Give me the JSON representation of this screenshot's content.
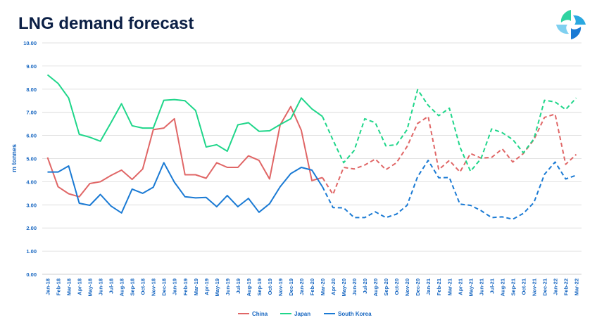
{
  "title": "LNG demand forecast",
  "chart_data": {
    "type": "line",
    "title": "LNG demand forecast",
    "ylabel": "m tonnes",
    "xlabel": "",
    "ylim": [
      0,
      10
    ],
    "yticks": [
      "0.00",
      "1.00",
      "2.00",
      "3.00",
      "4.00",
      "5.00",
      "6.00",
      "7.00",
      "8.00",
      "9.00",
      "10.00"
    ],
    "grid": true,
    "legend_position": "bottom",
    "forecast_start_index": 26,
    "categories": [
      "Jan-18",
      "Feb-18",
      "Mar-18",
      "Apr-18",
      "May-18",
      "Jun-18",
      "Jul-18",
      "Aug-18",
      "Sep-18",
      "Oct-18",
      "Nov-18",
      "Dec-18",
      "Jan-19",
      "Feb-19",
      "Mar-19",
      "Apr-19",
      "May-19",
      "Jun-19",
      "Jul-19",
      "Aug-19",
      "Sep-19",
      "Oct-19",
      "Nov-19",
      "Dec-19",
      "Jan-20",
      "Feb-20",
      "Mar-20",
      "Apr-20",
      "May-20",
      "Jun-20",
      "Jul-20",
      "Aug-20",
      "Sep-20",
      "Oct-20",
      "Nov-20",
      "Dec-20",
      "Jan-21",
      "Feb-21",
      "Mar-21",
      "Apr-21",
      "May-21",
      "Jun-21",
      "Jul-21",
      "Aug-21",
      "Sep-21",
      "Oct-21",
      "Nov-21",
      "Dec-21",
      "Jan-22",
      "Feb-22",
      "Mar-22"
    ],
    "series": [
      {
        "name": "China",
        "color": "#e06666",
        "values": [
          5.05,
          3.78,
          3.48,
          3.35,
          3.92,
          4.0,
          4.27,
          4.5,
          4.1,
          4.55,
          6.25,
          6.32,
          6.72,
          4.3,
          4.3,
          4.15,
          4.82,
          4.62,
          4.62,
          5.12,
          4.92,
          4.12,
          6.45,
          7.25,
          6.22,
          4.05,
          4.18,
          3.45,
          4.62,
          4.55,
          4.72,
          4.98,
          4.52,
          4.82,
          5.52,
          6.52,
          6.82,
          4.52,
          4.92,
          4.42,
          5.22,
          5.02,
          5.05,
          5.42,
          4.85,
          5.22,
          5.82,
          6.78,
          6.92,
          4.75,
          5.18
        ]
      },
      {
        "name": "Japan",
        "color": "#1fd68a",
        "values": [
          8.62,
          8.25,
          7.62,
          6.05,
          5.92,
          5.75,
          6.55,
          7.37,
          6.42,
          6.32,
          6.32,
          7.52,
          7.55,
          7.5,
          7.08,
          5.5,
          5.6,
          5.32,
          6.46,
          6.55,
          6.18,
          6.2,
          6.47,
          6.72,
          7.62,
          7.15,
          6.82,
          5.8,
          4.82,
          5.35,
          6.72,
          6.55,
          5.55,
          5.6,
          6.25,
          7.98,
          7.3,
          6.85,
          7.18,
          5.5,
          4.45,
          5.0,
          6.28,
          6.12,
          5.82,
          5.25,
          5.85,
          7.52,
          7.45,
          7.12,
          7.62
        ]
      },
      {
        "name": "South Korea",
        "color": "#1a7ad4",
        "values": [
          4.42,
          4.42,
          4.68,
          3.07,
          2.98,
          3.45,
          2.95,
          2.65,
          3.68,
          3.5,
          3.76,
          4.82,
          3.98,
          3.35,
          3.3,
          3.32,
          2.92,
          3.4,
          2.92,
          3.28,
          2.68,
          3.05,
          3.78,
          4.35,
          4.62,
          4.5,
          3.78,
          2.88,
          2.87,
          2.45,
          2.45,
          2.7,
          2.45,
          2.6,
          2.98,
          4.22,
          4.92,
          4.17,
          4.18,
          3.03,
          2.98,
          2.75,
          2.45,
          2.48,
          2.38,
          2.63,
          3.1,
          4.32,
          4.85,
          4.12,
          4.28
        ]
      }
    ]
  }
}
